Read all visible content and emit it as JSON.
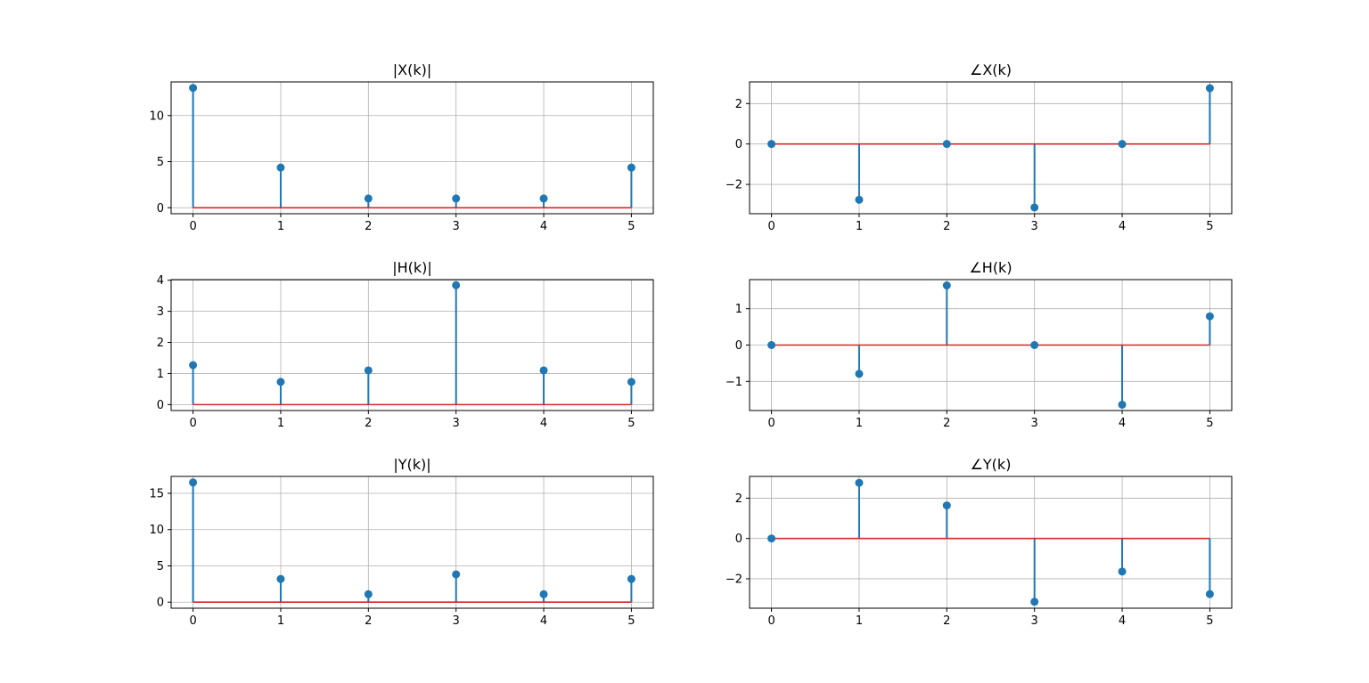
{
  "figure": {
    "background": "#ffffff"
  },
  "colors": {
    "stem": "#1f77b4",
    "baseline": "#d62728",
    "grid": "#b0b0b0"
  },
  "chart_data": [
    {
      "type": "stem",
      "title": "|X(k)|",
      "x": [
        0,
        1,
        2,
        3,
        4,
        5
      ],
      "y": [
        13.0,
        4.36,
        1.0,
        1.0,
        1.0,
        4.36
      ],
      "xlim": [
        -0.25,
        5.25
      ],
      "ylim": [
        -0.65,
        13.65
      ],
      "xticks": [
        0,
        1,
        2,
        3,
        4,
        5
      ],
      "yticks": [
        0,
        5,
        10
      ],
      "grid": true,
      "baseline": 0
    },
    {
      "type": "stem",
      "title": "∠X(k)",
      "x": [
        0,
        1,
        2,
        3,
        4,
        5
      ],
      "y": [
        0,
        -2.76,
        0,
        -3.14,
        0,
        2.76
      ],
      "xlim": [
        -0.25,
        5.25
      ],
      "ylim": [
        -3.45,
        3.07
      ],
      "xticks": [
        0,
        1,
        2,
        3,
        4,
        5
      ],
      "yticks": [
        -2,
        0,
        2
      ],
      "yticklabels": [
        "−2",
        "0",
        "2"
      ],
      "grid": true,
      "baseline": 0
    },
    {
      "type": "stem",
      "title": "|H(k)|",
      "x": [
        0,
        1,
        2,
        3,
        4,
        5
      ],
      "y": [
        1.27,
        0.73,
        1.1,
        3.84,
        1.1,
        0.73
      ],
      "xlim": [
        -0.25,
        5.25
      ],
      "ylim": [
        -0.19,
        4.02
      ],
      "xticks": [
        0,
        1,
        2,
        3,
        4,
        5
      ],
      "yticks": [
        0,
        1,
        2,
        3,
        4
      ],
      "grid": true,
      "baseline": 0
    },
    {
      "type": "stem",
      "title": "∠H(k)",
      "x": [
        0,
        1,
        2,
        3,
        4,
        5
      ],
      "y": [
        0,
        -0.79,
        1.64,
        0,
        -1.64,
        0.79
      ],
      "xlim": [
        -0.25,
        5.25
      ],
      "ylim": [
        -1.8,
        1.8
      ],
      "xticks": [
        0,
        1,
        2,
        3,
        4,
        5
      ],
      "yticks": [
        -1,
        0,
        1
      ],
      "yticklabels": [
        "−1",
        "0",
        "1"
      ],
      "grid": true,
      "baseline": 0
    },
    {
      "type": "stem",
      "title": "|Y(k)|",
      "x": [
        0,
        1,
        2,
        3,
        4,
        5
      ],
      "y": [
        16.5,
        3.2,
        1.1,
        3.84,
        1.1,
        3.2
      ],
      "xlim": [
        -0.25,
        5.25
      ],
      "ylim": [
        -0.83,
        17.33
      ],
      "xticks": [
        0,
        1,
        2,
        3,
        4,
        5
      ],
      "yticks": [
        0,
        5,
        10,
        15
      ],
      "grid": true,
      "baseline": 0
    },
    {
      "type": "stem",
      "title": "∠Y(k)",
      "x": [
        0,
        1,
        2,
        3,
        4,
        5
      ],
      "y": [
        0,
        2.76,
        1.64,
        -3.14,
        -1.64,
        -2.76
      ],
      "xlim": [
        -0.25,
        5.25
      ],
      "ylim": [
        -3.46,
        3.08
      ],
      "xticks": [
        0,
        1,
        2,
        3,
        4,
        5
      ],
      "yticks": [
        -2,
        0,
        2
      ],
      "yticklabels": [
        "−2",
        "0",
        "2"
      ],
      "grid": true,
      "baseline": 0
    }
  ]
}
